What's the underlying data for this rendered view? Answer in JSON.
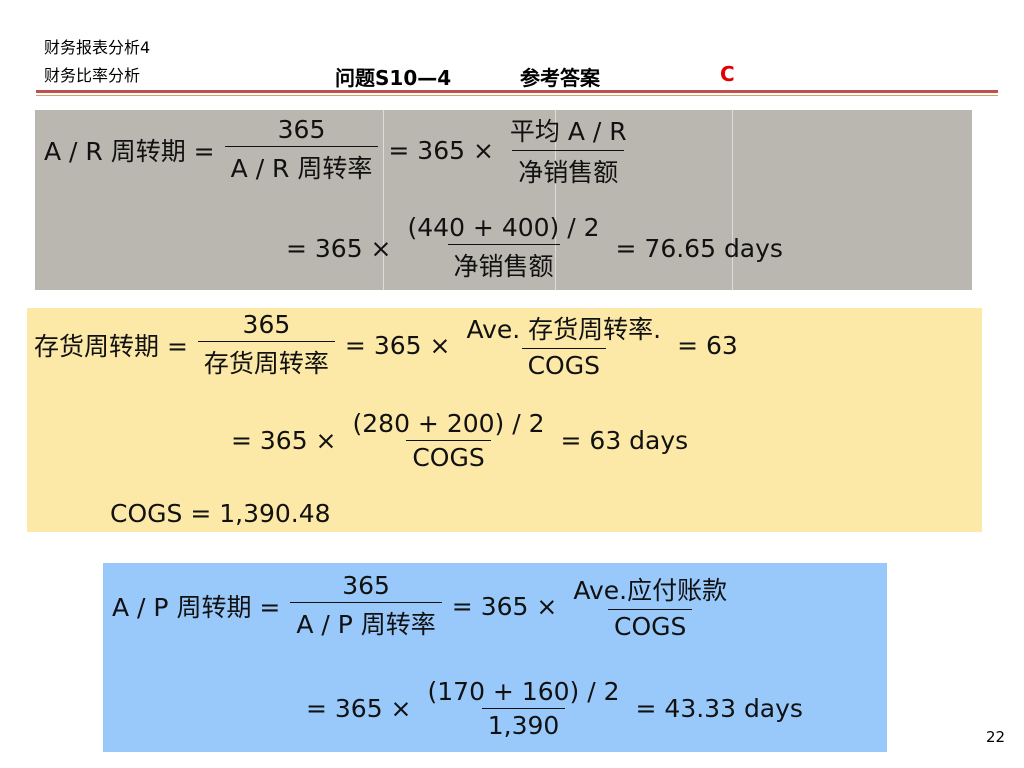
{
  "header": {
    "course": "财务报表分析4",
    "topic": "财务比率分析",
    "title": "问题S10—4",
    "answer_label": "参考答案",
    "answer": "C"
  },
  "formulas": [
    {
      "rows": [
        [
          {
            "text": "A / R 周转期 ="
          },
          {
            "num": "365",
            "den": "A / R 周转率"
          },
          {
            "text": "= 365 ×"
          },
          {
            "num": "平均 A / R",
            "den": "净销售额"
          }
        ],
        [
          {
            "text": "= 365 ×"
          },
          {
            "num": "(440 + 400) / 2",
            "den": "净销售额"
          },
          {
            "text": "= 76.65 days"
          }
        ]
      ]
    },
    {
      "rows": [
        [
          {
            "text": "存货周转期 ="
          },
          {
            "num": "365",
            "den": "存货周转率"
          },
          {
            "text": "= 365 ×"
          },
          {
            "num": "Ave. 存货周转率.",
            "den": "COGS"
          },
          {
            "text": "= 63"
          }
        ],
        [
          {
            "text": "= 365 ×"
          },
          {
            "num": "(280 + 200) / 2",
            "den": "COGS"
          },
          {
            "text": "= 63 days"
          }
        ],
        [
          {
            "text": "COGS = 1,390.48"
          }
        ]
      ]
    },
    {
      "rows": [
        [
          {
            "text": "A / P 周转期 ="
          },
          {
            "num": "365",
            "den": "A / P 周转率"
          },
          {
            "text": "= 365 ×"
          },
          {
            "num": "Ave.应付账款",
            "den": "COGS"
          }
        ],
        [
          {
            "text": "= 365 ×"
          },
          {
            "num": "(170 + 160) / 2",
            "den": "1,390"
          },
          {
            "text": "= 43.33 days"
          }
        ]
      ]
    }
  ],
  "page_number": "22"
}
